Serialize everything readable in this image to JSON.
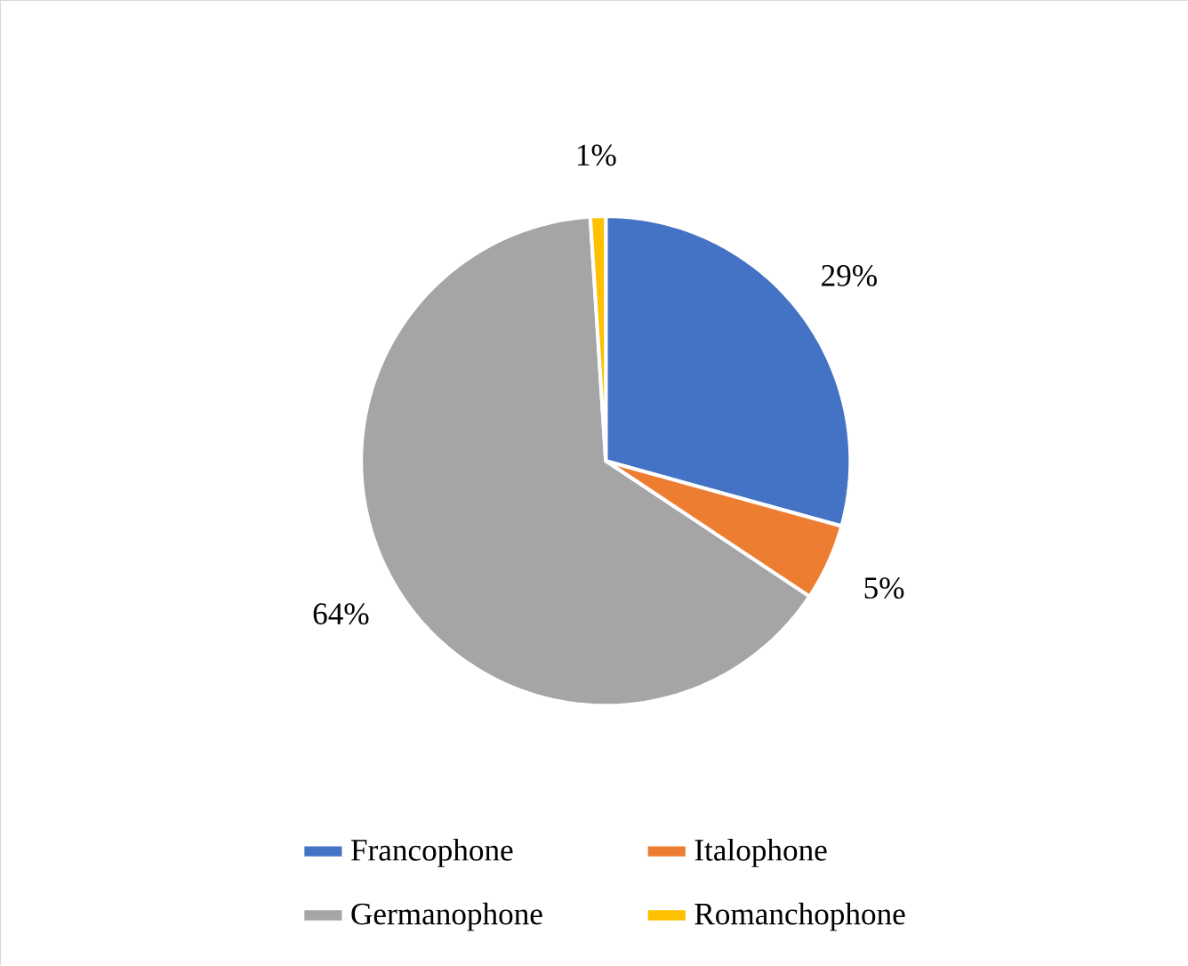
{
  "chart_data": {
    "type": "pie",
    "categories": [
      "Francophone",
      "Italophone",
      "Germanophone",
      "Romanchophone"
    ],
    "values": [
      29,
      5,
      64,
      1
    ],
    "colors": [
      "#4472c4",
      "#ed7d31",
      "#a5a5a5",
      "#ffc000"
    ],
    "value_labels": [
      "29%",
      "5%",
      "64%",
      "1%"
    ],
    "legend": "bottom"
  }
}
